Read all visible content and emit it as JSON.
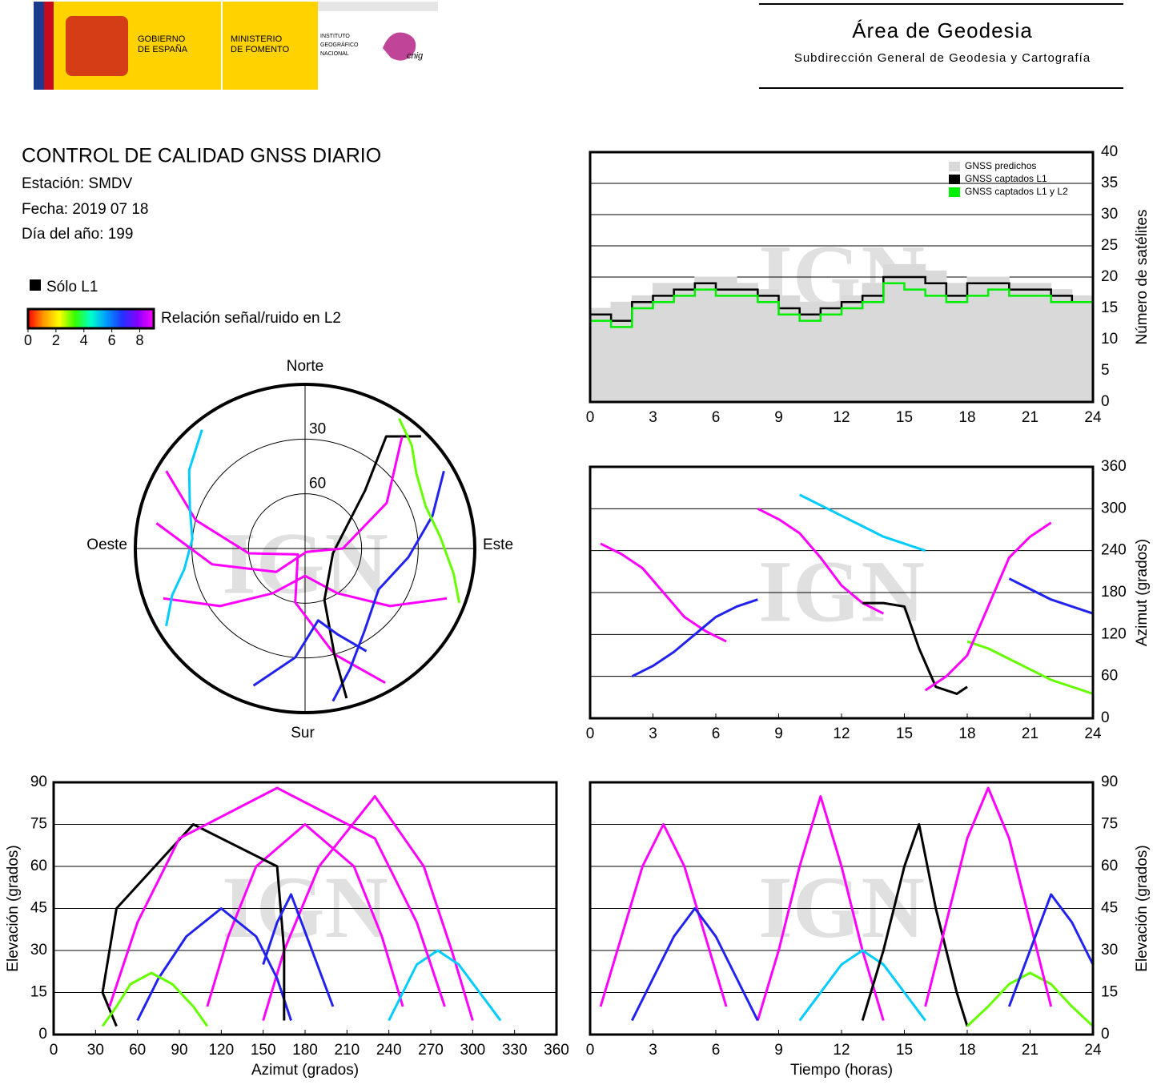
{
  "header": {
    "gobierno": [
      "GOBIERNO",
      "DE ESPAÑA"
    ],
    "ministerio": [
      "MINISTERIO",
      "DE FOMENTO"
    ],
    "instituto": [
      "INSTITUTO",
      "GEOGRÁFICO",
      "NACIONAL"
    ],
    "cnig": "cnig",
    "area": "Área de Geodesia",
    "subdireccion": "Subdirección General de Geodesia y Cartografía"
  },
  "report": {
    "title": "CONTROL DE CALIDAD GNSS DIARIO",
    "station": "Estación: SMDV",
    "date": "Fecha: 2019 07 18",
    "doy": "Día del año: 199",
    "l1_only": "Sólo L1",
    "snr_label": "Relación señal/ruido en L2",
    "snr_lim": [
      0,
      9
    ],
    "snr_ticks": [
      0,
      2,
      4,
      6,
      8
    ],
    "snr_colors": [
      "#ff0000",
      "#ff9900",
      "#ffff00",
      "#33ff00",
      "#00ffcc",
      "#0099ff",
      "#2233ff",
      "#8800ff",
      "#ff00ff"
    ]
  },
  "chart_data": [
    {
      "type": "polar",
      "compass": {
        "north": "Norte",
        "south": "Sur",
        "east": "Este",
        "west": "Oeste"
      },
      "rticks": [
        30,
        60
      ],
      "watermark": "IGN",
      "series": [
        {
          "color": "#ff00ff",
          "az": [
            250,
            235,
            215,
            180,
            145,
            125,
            110
          ],
          "values": [
            10,
            35,
            60,
            75,
            60,
            35,
            10
          ]
        },
        {
          "color": "#ff00ff",
          "az": [
            300,
            285,
            265,
            230,
            190,
            165,
            150
          ],
          "values": [
            5,
            30,
            60,
            85,
            60,
            30,
            5
          ]
        },
        {
          "color": "#2222ee",
          "az": [
            60,
            75,
            95,
            120,
            145,
            160,
            170
          ],
          "values": [
            5,
            20,
            35,
            45,
            35,
            20,
            5
          ]
        },
        {
          "color": "#00ccff",
          "az": [
            320,
            305,
            290,
            275,
            260,
            250,
            240
          ],
          "values": [
            5,
            15,
            25,
            30,
            25,
            15,
            5
          ]
        },
        {
          "color": "#000000",
          "az": [
            165,
            165,
            160,
            100,
            45,
            35,
            45
          ],
          "values": [
            5,
            30,
            60,
            75,
            45,
            15,
            3
          ]
        },
        {
          "color": "#66ff00",
          "az": [
            110,
            100,
            85,
            70,
            55,
            45,
            35
          ],
          "values": [
            3,
            10,
            18,
            22,
            18,
            10,
            3
          ]
        },
        {
          "color": "#ff00ff",
          "az": [
            40,
            60,
            90,
            160,
            230,
            260,
            280
          ],
          "values": [
            10,
            40,
            70,
            88,
            70,
            40,
            10
          ]
        },
        {
          "color": "#2222ee",
          "az": [
            200,
            185,
            170,
            160,
            150
          ],
          "values": [
            10,
            30,
            50,
            40,
            25
          ]
        }
      ]
    },
    {
      "type": "step",
      "xlim": [
        0,
        24
      ],
      "xticks": [
        0,
        3,
        6,
        9,
        12,
        15,
        18,
        21,
        24
      ],
      "ylim": [
        0,
        40
      ],
      "yticks": [
        0,
        5,
        10,
        15,
        20,
        25,
        30,
        35,
        40
      ],
      "ylabel": "Número de satélites",
      "y_axis_side": "right",
      "grid": true,
      "legend": "upper right",
      "watermark": "IGN",
      "x": [
        0,
        1,
        2,
        3,
        4,
        5,
        6,
        7,
        8,
        9,
        10,
        11,
        12,
        13,
        14,
        15,
        16,
        17,
        18,
        19,
        20,
        21,
        22,
        23,
        24
      ],
      "series": [
        {
          "name": "GNSS predichos",
          "color": "#d9d9d9",
          "fill": true,
          "values": [
            15,
            16,
            17,
            19,
            19,
            20,
            20,
            19,
            18,
            17,
            16,
            16,
            17,
            19,
            22,
            22,
            21,
            19,
            20,
            20,
            19,
            19,
            18,
            17,
            15
          ]
        },
        {
          "name": "GNSS captados L1",
          "color": "#000000",
          "fill": false,
          "values": [
            14,
            13,
            16,
            17,
            18,
            19,
            18,
            18,
            17,
            15,
            14,
            15,
            16,
            17,
            20,
            20,
            19,
            17,
            19,
            19,
            18,
            18,
            17,
            16,
            15
          ]
        },
        {
          "name": "GNSS captados L1 y L2",
          "color": "#00ee00",
          "fill": false,
          "values": [
            13,
            12,
            15,
            16,
            17,
            18,
            17,
            17,
            16,
            14,
            13,
            14,
            15,
            16,
            19,
            18,
            17,
            16,
            17,
            18,
            17,
            17,
            16,
            16,
            14
          ]
        }
      ]
    },
    {
      "type": "line",
      "xlim": [
        0,
        24
      ],
      "xticks": [
        0,
        3,
        6,
        9,
        12,
        15,
        18,
        21,
        24
      ],
      "ylim": [
        0,
        360
      ],
      "yticks": [
        0,
        60,
        120,
        180,
        240,
        300,
        360
      ],
      "ylabel": "Azimut (grados)",
      "y_axis_side": "right",
      "grid": true,
      "watermark": "IGN",
      "series": [
        {
          "color": "#ff00ff",
          "x": [
            0.5,
            1.5,
            2.5,
            3.5,
            4.5,
            5.5,
            6.5
          ],
          "values": [
            250,
            235,
            215,
            180,
            145,
            125,
            110
          ]
        },
        {
          "color": "#ff00ff",
          "x": [
            8,
            9,
            10,
            11,
            12,
            13,
            14
          ],
          "values": [
            300,
            285,
            265,
            230,
            190,
            165,
            150
          ]
        },
        {
          "color": "#2222ee",
          "x": [
            2,
            3,
            4,
            5,
            6,
            7,
            8
          ],
          "values": [
            60,
            75,
            95,
            120,
            145,
            160,
            170
          ]
        },
        {
          "color": "#00ccff",
          "x": [
            10,
            11,
            12,
            13,
            14,
            15,
            16
          ],
          "values": [
            320,
            305,
            290,
            275,
            260,
            250,
            240
          ]
        },
        {
          "color": "#000000",
          "x": [
            13,
            14,
            15,
            15.7,
            16.5,
            17.5,
            18
          ],
          "values": [
            165,
            165,
            160,
            100,
            45,
            35,
            45
          ]
        },
        {
          "color": "#66ff00",
          "x": [
            18,
            19,
            20,
            21,
            22,
            23,
            24
          ],
          "values": [
            110,
            100,
            85,
            70,
            55,
            45,
            35
          ]
        },
        {
          "color": "#ff00ff",
          "x": [
            16,
            17,
            18,
            19,
            20,
            21,
            22
          ],
          "values": [
            40,
            60,
            90,
            160,
            230,
            260,
            280
          ]
        },
        {
          "color": "#2222ee",
          "x": [
            20,
            21,
            22,
            23,
            24
          ],
          "values": [
            200,
            185,
            170,
            160,
            150
          ]
        }
      ]
    },
    {
      "type": "line",
      "xlim": [
        0,
        360
      ],
      "xticks": [
        0,
        30,
        60,
        90,
        120,
        150,
        180,
        210,
        240,
        270,
        300,
        330,
        360
      ],
      "ylim": [
        0,
        90
      ],
      "yticks": [
        0,
        15,
        30,
        45,
        60,
        75,
        90
      ],
      "xlabel": "Azimut (grados)",
      "ylabel": "Elevación (grados)",
      "y_axis_side": "left",
      "grid": true,
      "watermark": "IGN",
      "series": [
        {
          "color": "#ff00ff",
          "x": [
            110,
            125,
            145,
            180,
            215,
            235,
            250
          ],
          "values": [
            10,
            35,
            60,
            75,
            60,
            35,
            10
          ]
        },
        {
          "color": "#ff00ff",
          "x": [
            150,
            165,
            190,
            230,
            265,
            285,
            300
          ],
          "values": [
            5,
            30,
            60,
            85,
            60,
            30,
            5
          ]
        },
        {
          "color": "#2222ee",
          "x": [
            60,
            75,
            95,
            120,
            145,
            160,
            170
          ],
          "values": [
            5,
            20,
            35,
            45,
            35,
            20,
            5
          ]
        },
        {
          "color": "#00ccff",
          "x": [
            240,
            250,
            260,
            275,
            290,
            305,
            320
          ],
          "values": [
            5,
            15,
            25,
            30,
            25,
            15,
            5
          ]
        },
        {
          "color": "#000000",
          "x": [
            165,
            165,
            160,
            100,
            45,
            35,
            45
          ],
          "values": [
            5,
            30,
            60,
            75,
            45,
            15,
            3
          ]
        },
        {
          "color": "#66ff00",
          "x": [
            35,
            45,
            55,
            70,
            85,
            100,
            110
          ],
          "values": [
            3,
            10,
            18,
            22,
            18,
            10,
            3
          ]
        },
        {
          "color": "#ff00ff",
          "x": [
            40,
            60,
            90,
            160,
            230,
            260,
            280
          ],
          "values": [
            10,
            40,
            70,
            88,
            70,
            40,
            10
          ]
        },
        {
          "color": "#2222ee",
          "x": [
            150,
            160,
            170,
            185,
            200
          ],
          "values": [
            25,
            40,
            50,
            30,
            10
          ]
        }
      ]
    },
    {
      "type": "line",
      "xlim": [
        0,
        24
      ],
      "xticks": [
        0,
        3,
        6,
        9,
        12,
        15,
        18,
        21,
        24
      ],
      "ylim": [
        0,
        90
      ],
      "yticks": [
        0,
        15,
        30,
        45,
        60,
        75,
        90
      ],
      "xlabel": "Tiempo (horas)",
      "ylabel": "Elevación (grados)",
      "y_axis_side": "right",
      "grid": true,
      "watermark": "IGN",
      "series": [
        {
          "color": "#ff00ff",
          "x": [
            0.5,
            1.5,
            2.5,
            3.5,
            4.5,
            5.5,
            6.5
          ],
          "values": [
            10,
            35,
            60,
            75,
            60,
            35,
            10
          ]
        },
        {
          "color": "#ff00ff",
          "x": [
            8,
            9,
            10,
            11,
            12,
            13,
            14
          ],
          "values": [
            5,
            30,
            60,
            85,
            60,
            30,
            5
          ]
        },
        {
          "color": "#2222ee",
          "x": [
            2,
            3,
            4,
            5,
            6,
            7,
            8
          ],
          "values": [
            5,
            20,
            35,
            45,
            35,
            20,
            5
          ]
        },
        {
          "color": "#00ccff",
          "x": [
            10,
            11,
            12,
            13,
            14,
            15,
            16
          ],
          "values": [
            5,
            15,
            25,
            30,
            25,
            15,
            5
          ]
        },
        {
          "color": "#000000",
          "x": [
            13,
            14,
            15,
            15.7,
            16.5,
            17.5,
            18
          ],
          "values": [
            5,
            30,
            60,
            75,
            45,
            15,
            3
          ]
        },
        {
          "color": "#66ff00",
          "x": [
            18,
            19,
            20,
            21,
            22,
            23,
            24
          ],
          "values": [
            3,
            10,
            18,
            22,
            18,
            10,
            3
          ]
        },
        {
          "color": "#ff00ff",
          "x": [
            16,
            17,
            18,
            19,
            20,
            21,
            22
          ],
          "values": [
            10,
            40,
            70,
            88,
            70,
            40,
            10
          ]
        },
        {
          "color": "#2222ee",
          "x": [
            20,
            21,
            22,
            23,
            24
          ],
          "values": [
            10,
            30,
            50,
            40,
            25
          ]
        }
      ]
    }
  ]
}
